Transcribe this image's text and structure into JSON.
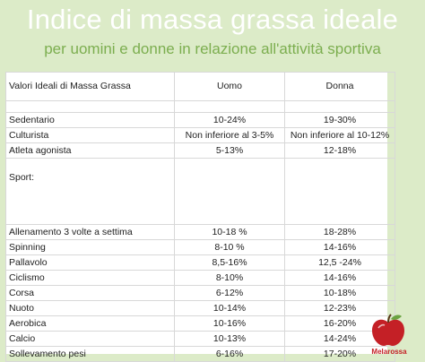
{
  "header": {
    "title": "Indice di massa grassa ideale",
    "subtitle": "per uomini e donne in relazione all'attività sportiva"
  },
  "table": {
    "columns": [
      "Valori Ideali di Massa Grassa",
      "Uomo",
      "Donna"
    ],
    "rows_top": [
      [
        "Sedentario",
        "10-24%",
        "19-30%"
      ],
      [
        "Culturista",
        "Non inferiore al 3-5%",
        "Non inferiore al 10-12%"
      ],
      [
        "Atleta agonista",
        "5-13%",
        "12-18%"
      ]
    ],
    "sport_label": "Sport:",
    "rows_sport": [
      [
        "Allenamento 3 volte a settima",
        "10-18 %",
        "18-28%"
      ],
      [
        "Spinning",
        "8-10 %",
        "14-16%"
      ],
      [
        "Pallavolo",
        "8,5-16%",
        "12,5 -24%"
      ],
      [
        "Ciclismo",
        "8-10%",
        "14-16%"
      ],
      [
        "Corsa",
        "6-12%",
        "10-18%"
      ],
      [
        "Nuoto",
        "10-14%",
        "12-23%"
      ],
      [
        "Aerobica",
        "10-16%",
        "16-20%"
      ],
      [
        "Calcio",
        "10-13%",
        "14-24%"
      ],
      [
        "Sollevamento pesi",
        "6-16%",
        "17-20%"
      ]
    ]
  },
  "brand": {
    "name": "Melarossa",
    "logo_icon": "apple-icon",
    "color": "#c42026"
  }
}
